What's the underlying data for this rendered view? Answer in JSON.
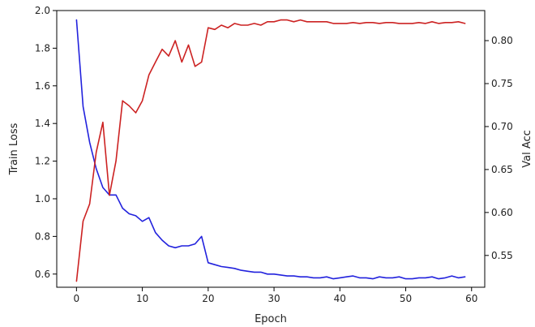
{
  "chart_data": {
    "type": "line",
    "xlabel": "Epoch",
    "ylabel_left": "Train Loss",
    "ylabel_right": "Val Acc",
    "xlim": [
      -3,
      62
    ],
    "ylim_left": [
      0.53,
      2.0
    ],
    "ylim_right": [
      0.513,
      0.835
    ],
    "x_ticks": [
      0,
      10,
      20,
      30,
      40,
      50,
      60
    ],
    "y_left_ticks": [
      0.6,
      0.8,
      1.0,
      1.2,
      1.4,
      1.6,
      1.8,
      2.0
    ],
    "y_right_ticks": [
      0.55,
      0.6,
      0.65,
      0.7,
      0.75,
      0.8
    ],
    "grid": false,
    "x": [
      0,
      1,
      2,
      3,
      4,
      5,
      6,
      7,
      8,
      9,
      10,
      11,
      12,
      13,
      14,
      15,
      16,
      17,
      18,
      19,
      20,
      21,
      22,
      23,
      24,
      25,
      26,
      27,
      28,
      29,
      30,
      31,
      32,
      33,
      34,
      35,
      36,
      37,
      38,
      39,
      40,
      41,
      42,
      43,
      44,
      45,
      46,
      47,
      48,
      49,
      50,
      51,
      52,
      53,
      54,
      55,
      56,
      57,
      58,
      59
    ],
    "series": [
      {
        "axis": "left",
        "color": "#2222dd",
        "values": [
          1.95,
          1.49,
          1.3,
          1.16,
          1.06,
          1.02,
          1.02,
          0.95,
          0.92,
          0.91,
          0.88,
          0.9,
          0.82,
          0.78,
          0.75,
          0.74,
          0.75,
          0.75,
          0.76,
          0.8,
          0.66,
          0.65,
          0.64,
          0.635,
          0.63,
          0.62,
          0.615,
          0.61,
          0.61,
          0.6,
          0.6,
          0.595,
          0.59,
          0.59,
          0.585,
          0.585,
          0.58,
          0.58,
          0.585,
          0.575,
          0.58,
          0.585,
          0.59,
          0.58,
          0.58,
          0.575,
          0.585,
          0.58,
          0.58,
          0.585,
          0.575,
          0.575,
          0.58,
          0.58,
          0.585,
          0.575,
          0.58,
          0.59,
          0.58,
          0.585
        ]
      },
      {
        "axis": "right",
        "color": "#cc2222",
        "values": [
          0.52,
          0.59,
          0.61,
          0.67,
          0.705,
          0.62,
          0.66,
          0.73,
          0.724,
          0.716,
          0.73,
          0.76,
          0.775,
          0.79,
          0.782,
          0.8,
          0.775,
          0.795,
          0.77,
          0.775,
          0.815,
          0.813,
          0.818,
          0.815,
          0.82,
          0.818,
          0.818,
          0.82,
          0.818,
          0.822,
          0.822,
          0.824,
          0.824,
          0.822,
          0.824,
          0.822,
          0.822,
          0.822,
          0.822,
          0.82,
          0.82,
          0.82,
          0.821,
          0.82,
          0.821,
          0.821,
          0.82,
          0.821,
          0.821,
          0.82,
          0.82,
          0.82,
          0.821,
          0.82,
          0.822,
          0.82,
          0.821,
          0.821,
          0.822,
          0.82
        ]
      }
    ]
  }
}
